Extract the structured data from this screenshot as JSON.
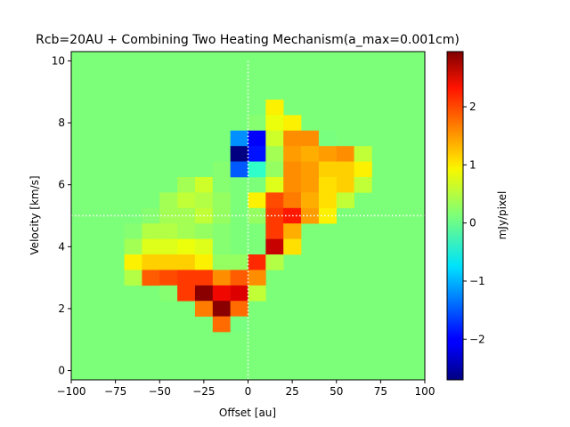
{
  "chart_data": {
    "type": "heatmap",
    "title": "Rcb=20AU + Combining Two Heating Mechanism(a_max=0.001cm)",
    "xlabel": "Offset [au]",
    "ylabel": "Velocity [km/s]",
    "xlim": [
      -100,
      100
    ],
    "ylim": [
      -0.3,
      10.3
    ],
    "xticks": [
      -100,
      -75,
      -50,
      -25,
      0,
      25,
      50,
      75,
      100
    ],
    "xtick_labels": [
      "−100",
      "−75",
      "−50",
      "−25",
      "0",
      "25",
      "50",
      "75",
      "100"
    ],
    "yticks": [
      0,
      2,
      4,
      6,
      8,
      10
    ],
    "ytick_labels": [
      "0",
      "2",
      "4",
      "6",
      "8",
      "10"
    ],
    "colorbar": {
      "label": "mJy/pixel",
      "colormap": "jet",
      "vmin": -2.7,
      "vmax": 2.95,
      "ticks": [
        -2,
        -1,
        0,
        1,
        2
      ],
      "tick_labels": [
        "−2",
        "−1",
        "0",
        "1",
        "2"
      ]
    },
    "reference_lines": {
      "x": 0,
      "y": 5,
      "style": "dotted",
      "color": "#ffffff"
    },
    "pixel_size": {
      "offset_au": 10,
      "velocity_kms": 0.5
    },
    "offsets": [
      -95,
      -85,
      -75,
      -65,
      -55,
      -45,
      -35,
      -25,
      -15,
      -5,
      5,
      15,
      25,
      35,
      45,
      55,
      65,
      75,
      85,
      95
    ],
    "velocities": [
      10,
      9.5,
      9,
      8.5,
      8,
      7.5,
      7,
      6.5,
      6,
      5.5,
      5,
      4.5,
      4,
      3.5,
      3,
      2.5,
      2,
      1.5,
      1,
      0.5,
      0
    ],
    "background_value": 0,
    "cells": [
      {
        "x": 15,
        "v": 8.5,
        "value": 1.0
      },
      {
        "x": 5,
        "v": 8.0,
        "value": 0.2
      },
      {
        "x": 15,
        "v": 8.0,
        "value": 0.9
      },
      {
        "x": 25,
        "v": 8.0,
        "value": 1.0
      },
      {
        "x": -5,
        "v": 7.5,
        "value": -1.2
      },
      {
        "x": 5,
        "v": 7.5,
        "value": -2.1
      },
      {
        "x": 15,
        "v": 7.5,
        "value": 0.7
      },
      {
        "x": 25,
        "v": 7.5,
        "value": 1.6
      },
      {
        "x": 35,
        "v": 7.5,
        "value": 1.6
      },
      {
        "x": 45,
        "v": 7.5,
        "value": 0.1
      },
      {
        "x": -5,
        "v": 7.0,
        "value": -2.7
      },
      {
        "x": 5,
        "v": 7.0,
        "value": -1.9
      },
      {
        "x": 15,
        "v": 7.0,
        "value": 0.4
      },
      {
        "x": 25,
        "v": 7.0,
        "value": 1.5
      },
      {
        "x": 35,
        "v": 7.0,
        "value": 1.4
      },
      {
        "x": 45,
        "v": 7.0,
        "value": 1.5
      },
      {
        "x": 55,
        "v": 7.0,
        "value": 1.6
      },
      {
        "x": 65,
        "v": 7.0,
        "value": 0.6
      },
      {
        "x": -15,
        "v": 6.5,
        "value": 0.2
      },
      {
        "x": -5,
        "v": 6.5,
        "value": -1.5
      },
      {
        "x": 5,
        "v": 6.5,
        "value": -0.4
      },
      {
        "x": 15,
        "v": 6.5,
        "value": 0.3
      },
      {
        "x": 25,
        "v": 6.5,
        "value": 1.6
      },
      {
        "x": 35,
        "v": 6.5,
        "value": 1.5
      },
      {
        "x": 45,
        "v": 6.5,
        "value": 1.2
      },
      {
        "x": 55,
        "v": 6.5,
        "value": 1.2
      },
      {
        "x": 65,
        "v": 6.5,
        "value": 1.0
      },
      {
        "x": -35,
        "v": 6.0,
        "value": 0.4
      },
      {
        "x": -25,
        "v": 6.0,
        "value": 0.7
      },
      {
        "x": -15,
        "v": 6.0,
        "value": 0.2
      },
      {
        "x": 15,
        "v": 6.0,
        "value": 0.8
      },
      {
        "x": 25,
        "v": 6.0,
        "value": 1.6
      },
      {
        "x": 35,
        "v": 6.0,
        "value": 1.5
      },
      {
        "x": 45,
        "v": 6.0,
        "value": 1.1
      },
      {
        "x": 55,
        "v": 6.0,
        "value": 1.2
      },
      {
        "x": 65,
        "v": 6.0,
        "value": 0.6
      },
      {
        "x": -45,
        "v": 5.5,
        "value": 0.4
      },
      {
        "x": -35,
        "v": 5.5,
        "value": 0.6
      },
      {
        "x": -25,
        "v": 5.5,
        "value": 0.5
      },
      {
        "x": -15,
        "v": 5.5,
        "value": 0.3
      },
      {
        "x": 5,
        "v": 5.5,
        "value": 1.0
      },
      {
        "x": 15,
        "v": 5.5,
        "value": 2.0
      },
      {
        "x": 25,
        "v": 5.5,
        "value": 1.7
      },
      {
        "x": 35,
        "v": 5.5,
        "value": 1.4
      },
      {
        "x": 45,
        "v": 5.5,
        "value": 1.1
      },
      {
        "x": 55,
        "v": 5.5,
        "value": 0.6
      },
      {
        "x": -55,
        "v": 5.0,
        "value": 0.2
      },
      {
        "x": -45,
        "v": 5.0,
        "value": 0.4
      },
      {
        "x": -35,
        "v": 5.0,
        "value": 0.4
      },
      {
        "x": -25,
        "v": 5.0,
        "value": 0.6
      },
      {
        "x": -15,
        "v": 5.0,
        "value": 0.3
      },
      {
        "x": 5,
        "v": 5.0,
        "value": 0.3
      },
      {
        "x": 15,
        "v": 5.0,
        "value": 2.1
      },
      {
        "x": 25,
        "v": 5.0,
        "value": 2.3
      },
      {
        "x": 35,
        "v": 5.0,
        "value": 1.5
      },
      {
        "x": 45,
        "v": 5.0,
        "value": 1.0
      },
      {
        "x": -65,
        "v": 4.5,
        "value": 0.2
      },
      {
        "x": -55,
        "v": 4.5,
        "value": 0.5
      },
      {
        "x": -45,
        "v": 4.5,
        "value": 0.5
      },
      {
        "x": -35,
        "v": 4.5,
        "value": 0.4
      },
      {
        "x": -25,
        "v": 4.5,
        "value": 0.3
      },
      {
        "x": -15,
        "v": 4.5,
        "value": 0.2
      },
      {
        "x": 15,
        "v": 4.5,
        "value": 2.1
      },
      {
        "x": 25,
        "v": 4.5,
        "value": 1.4
      },
      {
        "x": -65,
        "v": 4.0,
        "value": 0.4
      },
      {
        "x": -55,
        "v": 4.0,
        "value": 0.8
      },
      {
        "x": -45,
        "v": 4.0,
        "value": 0.8
      },
      {
        "x": -35,
        "v": 4.0,
        "value": 0.9
      },
      {
        "x": -25,
        "v": 4.0,
        "value": 0.8
      },
      {
        "x": -15,
        "v": 4.0,
        "value": 0.2
      },
      {
        "x": 15,
        "v": 4.0,
        "value": 2.6
      },
      {
        "x": 25,
        "v": 4.0,
        "value": 1.1
      },
      {
        "x": -65,
        "v": 3.5,
        "value": 1.0
      },
      {
        "x": -55,
        "v": 3.5,
        "value": 1.2
      },
      {
        "x": -45,
        "v": 3.5,
        "value": 1.2
      },
      {
        "x": -35,
        "v": 3.5,
        "value": 1.2
      },
      {
        "x": -25,
        "v": 3.5,
        "value": 1.0
      },
      {
        "x": -15,
        "v": 3.5,
        "value": 0.3
      },
      {
        "x": -5,
        "v": 3.5,
        "value": 0.3
      },
      {
        "x": 5,
        "v": 3.5,
        "value": 2.2
      },
      {
        "x": 15,
        "v": 3.5,
        "value": 0.5
      },
      {
        "x": -65,
        "v": 3.0,
        "value": 0.5
      },
      {
        "x": -55,
        "v": 3.0,
        "value": 1.9
      },
      {
        "x": -45,
        "v": 3.0,
        "value": 2.0
      },
      {
        "x": -35,
        "v": 3.0,
        "value": 2.1
      },
      {
        "x": -25,
        "v": 3.0,
        "value": 2.1
      },
      {
        "x": -15,
        "v": 3.0,
        "value": 1.6
      },
      {
        "x": -5,
        "v": 3.0,
        "value": 1.9
      },
      {
        "x": 5,
        "v": 3.0,
        "value": 1.6
      },
      {
        "x": -45,
        "v": 2.5,
        "value": 0.2
      },
      {
        "x": -35,
        "v": 2.5,
        "value": 2.1
      },
      {
        "x": -25,
        "v": 2.5,
        "value": 2.9
      },
      {
        "x": -15,
        "v": 2.5,
        "value": 2.4
      },
      {
        "x": -5,
        "v": 2.5,
        "value": 2.5
      },
      {
        "x": 5,
        "v": 2.5,
        "value": 0.6
      },
      {
        "x": -25,
        "v": 2.0,
        "value": 1.7
      },
      {
        "x": -15,
        "v": 2.0,
        "value": 2.9
      },
      {
        "x": -5,
        "v": 2.0,
        "value": 1.8
      },
      {
        "x": -15,
        "v": 1.5,
        "value": 1.8
      },
      {
        "x": -5,
        "v": 1.5,
        "value": 0.1
      }
    ]
  }
}
